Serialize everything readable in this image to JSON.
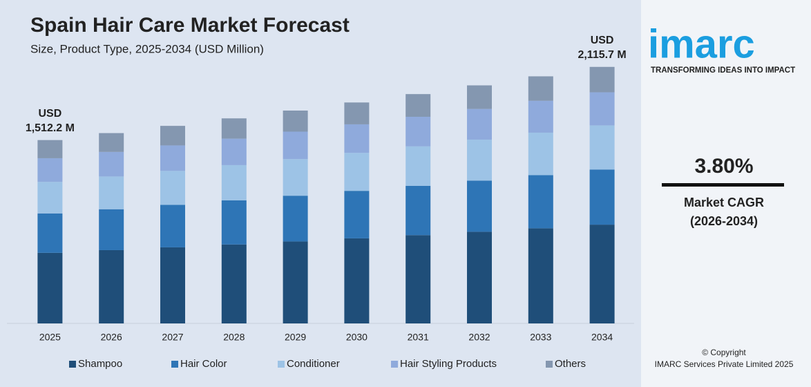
{
  "chart_data": {
    "type": "stacked-bar",
    "title": "Spain Hair Care Market Forecast",
    "subtitle": "Size, Product Type, 2025-2034 (USD Million)",
    "categories": [
      "2025",
      "2026",
      "2027",
      "2028",
      "2029",
      "2030",
      "2031",
      "2032",
      "2033",
      "2034"
    ],
    "series": [
      {
        "name": "Shampoo",
        "color": "#1f4e79",
        "values": [
          582.2,
          604.3,
          627.3,
          651.1,
          675.9,
          701.5,
          728.2,
          755.9,
          784.6,
          814.5
        ]
      },
      {
        "name": "Hair Color",
        "color": "#2e75b6",
        "values": [
          325.1,
          337.5,
          350.3,
          363.6,
          377.4,
          391.8,
          406.7,
          422.1,
          438.1,
          454.9
        ]
      },
      {
        "name": "Conditioner",
        "color": "#9dc3e6",
        "values": [
          260.1,
          270.0,
          280.2,
          290.9,
          301.9,
          313.4,
          325.3,
          337.7,
          350.5,
          363.9
        ]
      },
      {
        "name": "Hair Styling Products",
        "color": "#8faadc",
        "values": [
          195.1,
          202.5,
          210.2,
          218.2,
          226.5,
          235.1,
          244.0,
          253.3,
          262.9,
          272.9
        ]
      },
      {
        "name": "Others",
        "color": "#8497b0",
        "values": [
          149.7,
          155.4,
          161.3,
          167.4,
          173.8,
          180.4,
          187.2,
          194.3,
          201.8,
          209.5
        ]
      }
    ],
    "total_labels": {
      "2025": [
        "USD",
        "1,512.2 M"
      ],
      "2034": [
        "USD",
        "2,115.7 M"
      ]
    },
    "ylim": [
      0,
      2200
    ],
    "legend": "bottom"
  },
  "sidebar": {
    "logo": "imarc",
    "tagline": "TRANSFORMING IDEAS INTO IMPACT",
    "cagr": "3.80%",
    "cagr_label": "Market CAGR",
    "cagr_period": "(2026-2034)",
    "copyright": "© Copyright",
    "company": "IMARC Services Private Limited 2025"
  }
}
